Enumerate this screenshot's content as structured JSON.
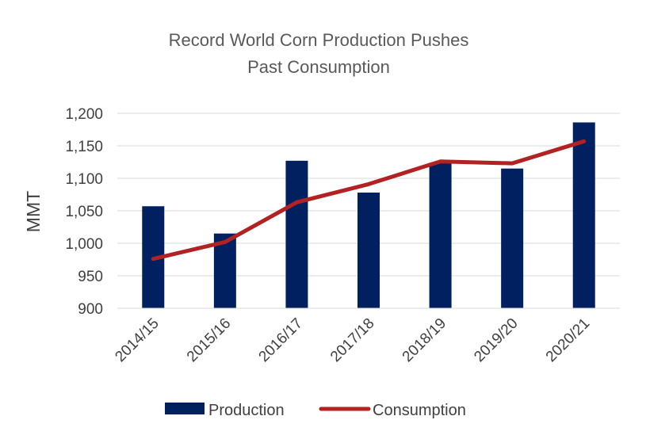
{
  "chart_data": {
    "type": "bar",
    "title_lines": [
      "Record World Corn Production Pushes",
      "Past Consumption"
    ],
    "xlabel": "",
    "ylabel": "MMT",
    "ylim": [
      900,
      1200
    ],
    "yticks": [
      900,
      950,
      1000,
      1050,
      1100,
      1150,
      1200
    ],
    "ytick_labels": [
      "900",
      "950",
      "1,000",
      "1,050",
      "1,100",
      "1,150",
      "1,200"
    ],
    "grid": true,
    "legend_position": "bottom",
    "categories": [
      "2014/15",
      "2015/16",
      "2016/17",
      "2017/18",
      "2018/19",
      "2019/20",
      "2020/21"
    ],
    "series": [
      {
        "name": "Production",
        "type": "bar",
        "color": "#002060",
        "values": [
          1057,
          1015,
          1127,
          1078,
          1124,
          1115,
          1186
        ]
      },
      {
        "name": "Consumption",
        "type": "line",
        "color": "#B22222",
        "values": [
          976,
          1002,
          1063,
          1091,
          1126,
          1123,
          1157
        ]
      }
    ]
  }
}
